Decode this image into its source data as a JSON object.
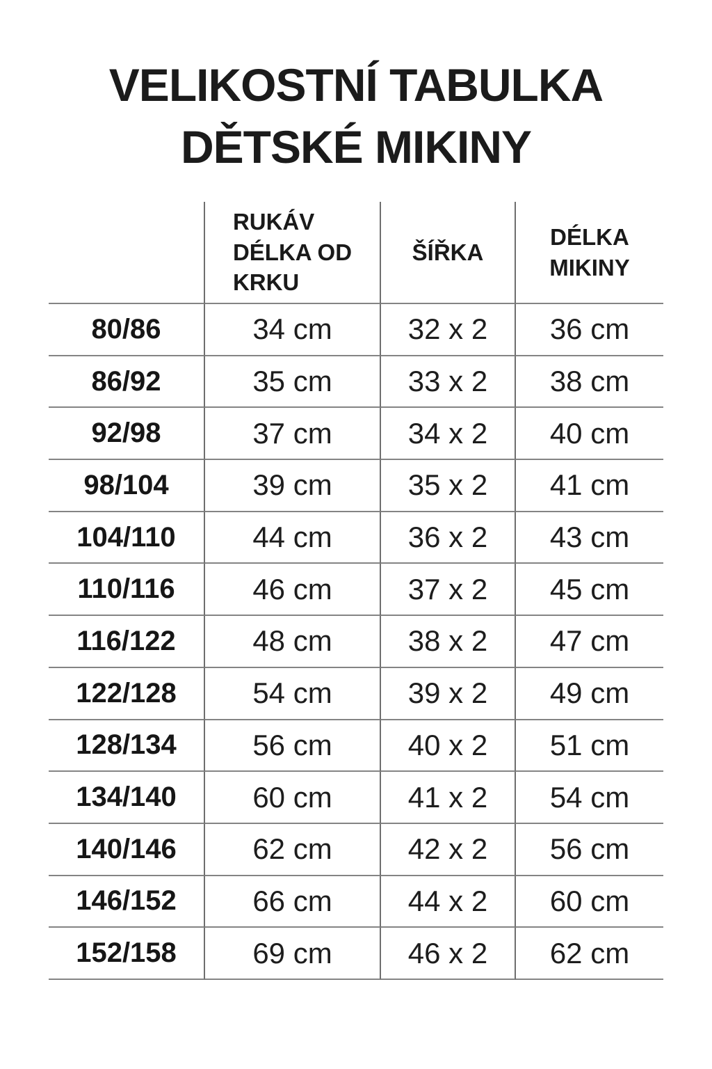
{
  "title": {
    "line1": "VELIKOSTNÍ TABULKA",
    "line2": "DĚTSKÉ MIKINY"
  },
  "colors": {
    "background": "#ffffff",
    "text": "#1c1c1c",
    "horizontal_line": "#848484",
    "vertical_line": "#6e6e6e"
  },
  "table": {
    "header": {
      "size": "",
      "sleeve": {
        "line1": "RUKÁV",
        "line2": "DÉLKA OD",
        "line3": "KRKU"
      },
      "width": {
        "line1": "ŠÍŘKA"
      },
      "length": {
        "line1": "DÉLKA",
        "line2": "MIKINY"
      }
    },
    "rows": [
      {
        "size": "80/86",
        "sleeve": "34 cm",
        "width": "32 x 2",
        "length": "36 cm"
      },
      {
        "size": "86/92",
        "sleeve": "35 cm",
        "width": "33 x 2",
        "length": "38 cm"
      },
      {
        "size": "92/98",
        "sleeve": "37 cm",
        "width": "34 x 2",
        "length": "40 cm"
      },
      {
        "size": "98/104",
        "sleeve": "39 cm",
        "width": "35 x 2",
        "length": "41 cm"
      },
      {
        "size": "104/110",
        "sleeve": "44 cm",
        "width": "36 x 2",
        "length": "43 cm"
      },
      {
        "size": "110/116",
        "sleeve": "46 cm",
        "width": "37 x 2",
        "length": "45 cm"
      },
      {
        "size": "116/122",
        "sleeve": "48 cm",
        "width": "38 x 2",
        "length": "47 cm"
      },
      {
        "size": "122/128",
        "sleeve": "54 cm",
        "width": "39 x 2",
        "length": "49 cm"
      },
      {
        "size": "128/134",
        "sleeve": "56 cm",
        "width": "40 x 2",
        "length": "51 cm"
      },
      {
        "size": "134/140",
        "sleeve": "60 cm",
        "width": "41 x 2",
        "length": "54 cm"
      },
      {
        "size": "140/146",
        "sleeve": "62 cm",
        "width": "42 x 2",
        "length": "56 cm"
      },
      {
        "size": "146/152",
        "sleeve": "66 cm",
        "width": "44 x 2",
        "length": "60 cm"
      },
      {
        "size": "152/158",
        "sleeve": "69 cm",
        "width": "46 x 2",
        "length": "62 cm"
      }
    ]
  }
}
